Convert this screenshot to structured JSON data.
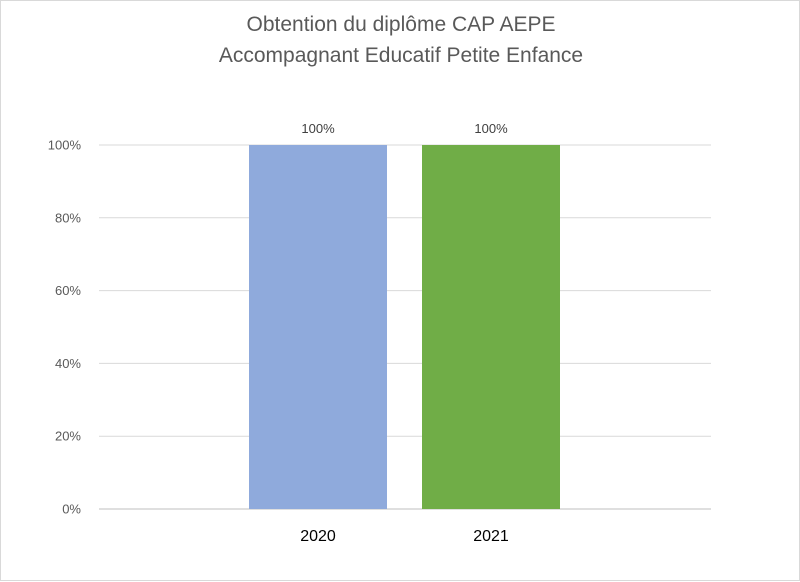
{
  "chart_data": {
    "type": "bar",
    "title": [
      "Obtention du diplôme CAP AEPE",
      "Accompagnant Educatif Petite Enfance"
    ],
    "categories": [
      "2020",
      "2021"
    ],
    "values": [
      100,
      100
    ],
    "data_labels": [
      "100%",
      "100%"
    ],
    "bar_colors": [
      "#8faadc",
      "#70ad47"
    ],
    "ylim": [
      0,
      100
    ],
    "yticks": [
      0,
      20,
      40,
      60,
      80,
      100
    ],
    "ytick_labels": [
      "0%",
      "20%",
      "40%",
      "60%",
      "80%",
      "100%"
    ],
    "xlabel": "",
    "ylabel": "",
    "grid": true,
    "legend": "none"
  }
}
